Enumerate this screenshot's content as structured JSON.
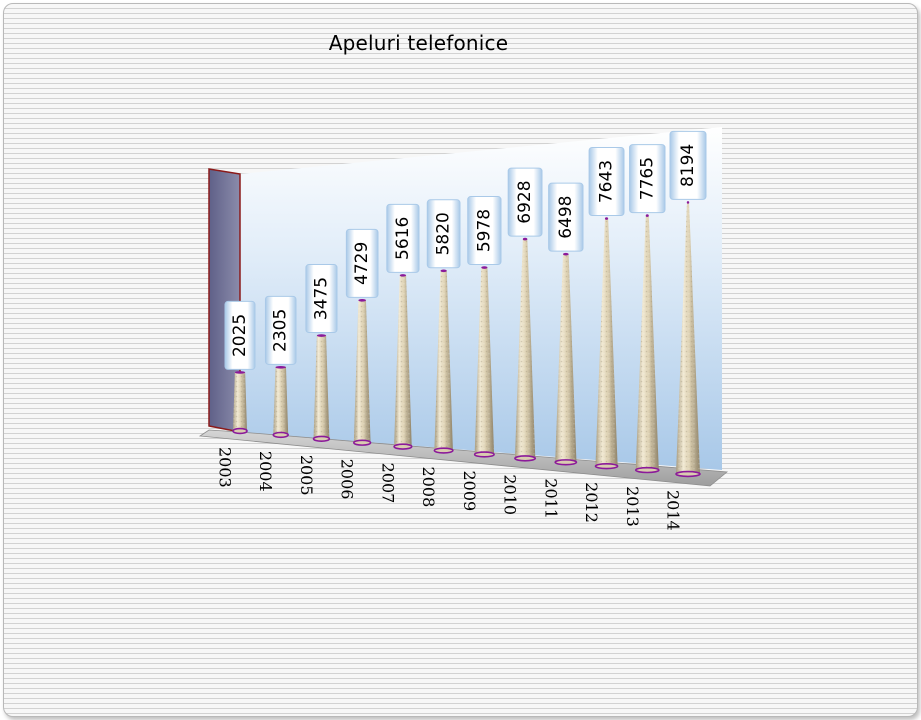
{
  "chart_data": {
    "type": "bar",
    "bar_shape": "cone",
    "three_d": true,
    "title": "Apeluri telefonice",
    "categories": [
      "2003",
      "2004",
      "2005",
      "2006",
      "2007",
      "2008",
      "2009",
      "2010",
      "2011",
      "2012",
      "2013",
      "2014"
    ],
    "values": [
      2025,
      2305,
      3475,
      4729,
      5616,
      5820,
      5978,
      6928,
      6498,
      7643,
      7765,
      8194
    ],
    "show_data_labels": true,
    "data_label_rotation": "vertical",
    "legend": "none",
    "grid": false,
    "colors": {
      "cone": "#e6dcc3",
      "cone_rim": "#8b1a9a",
      "back_wall": "#bcd6ee",
      "side_wall": "#7b7c9d",
      "floor": "#bdbdbd",
      "label_box_border": "#a9c9e8"
    }
  }
}
